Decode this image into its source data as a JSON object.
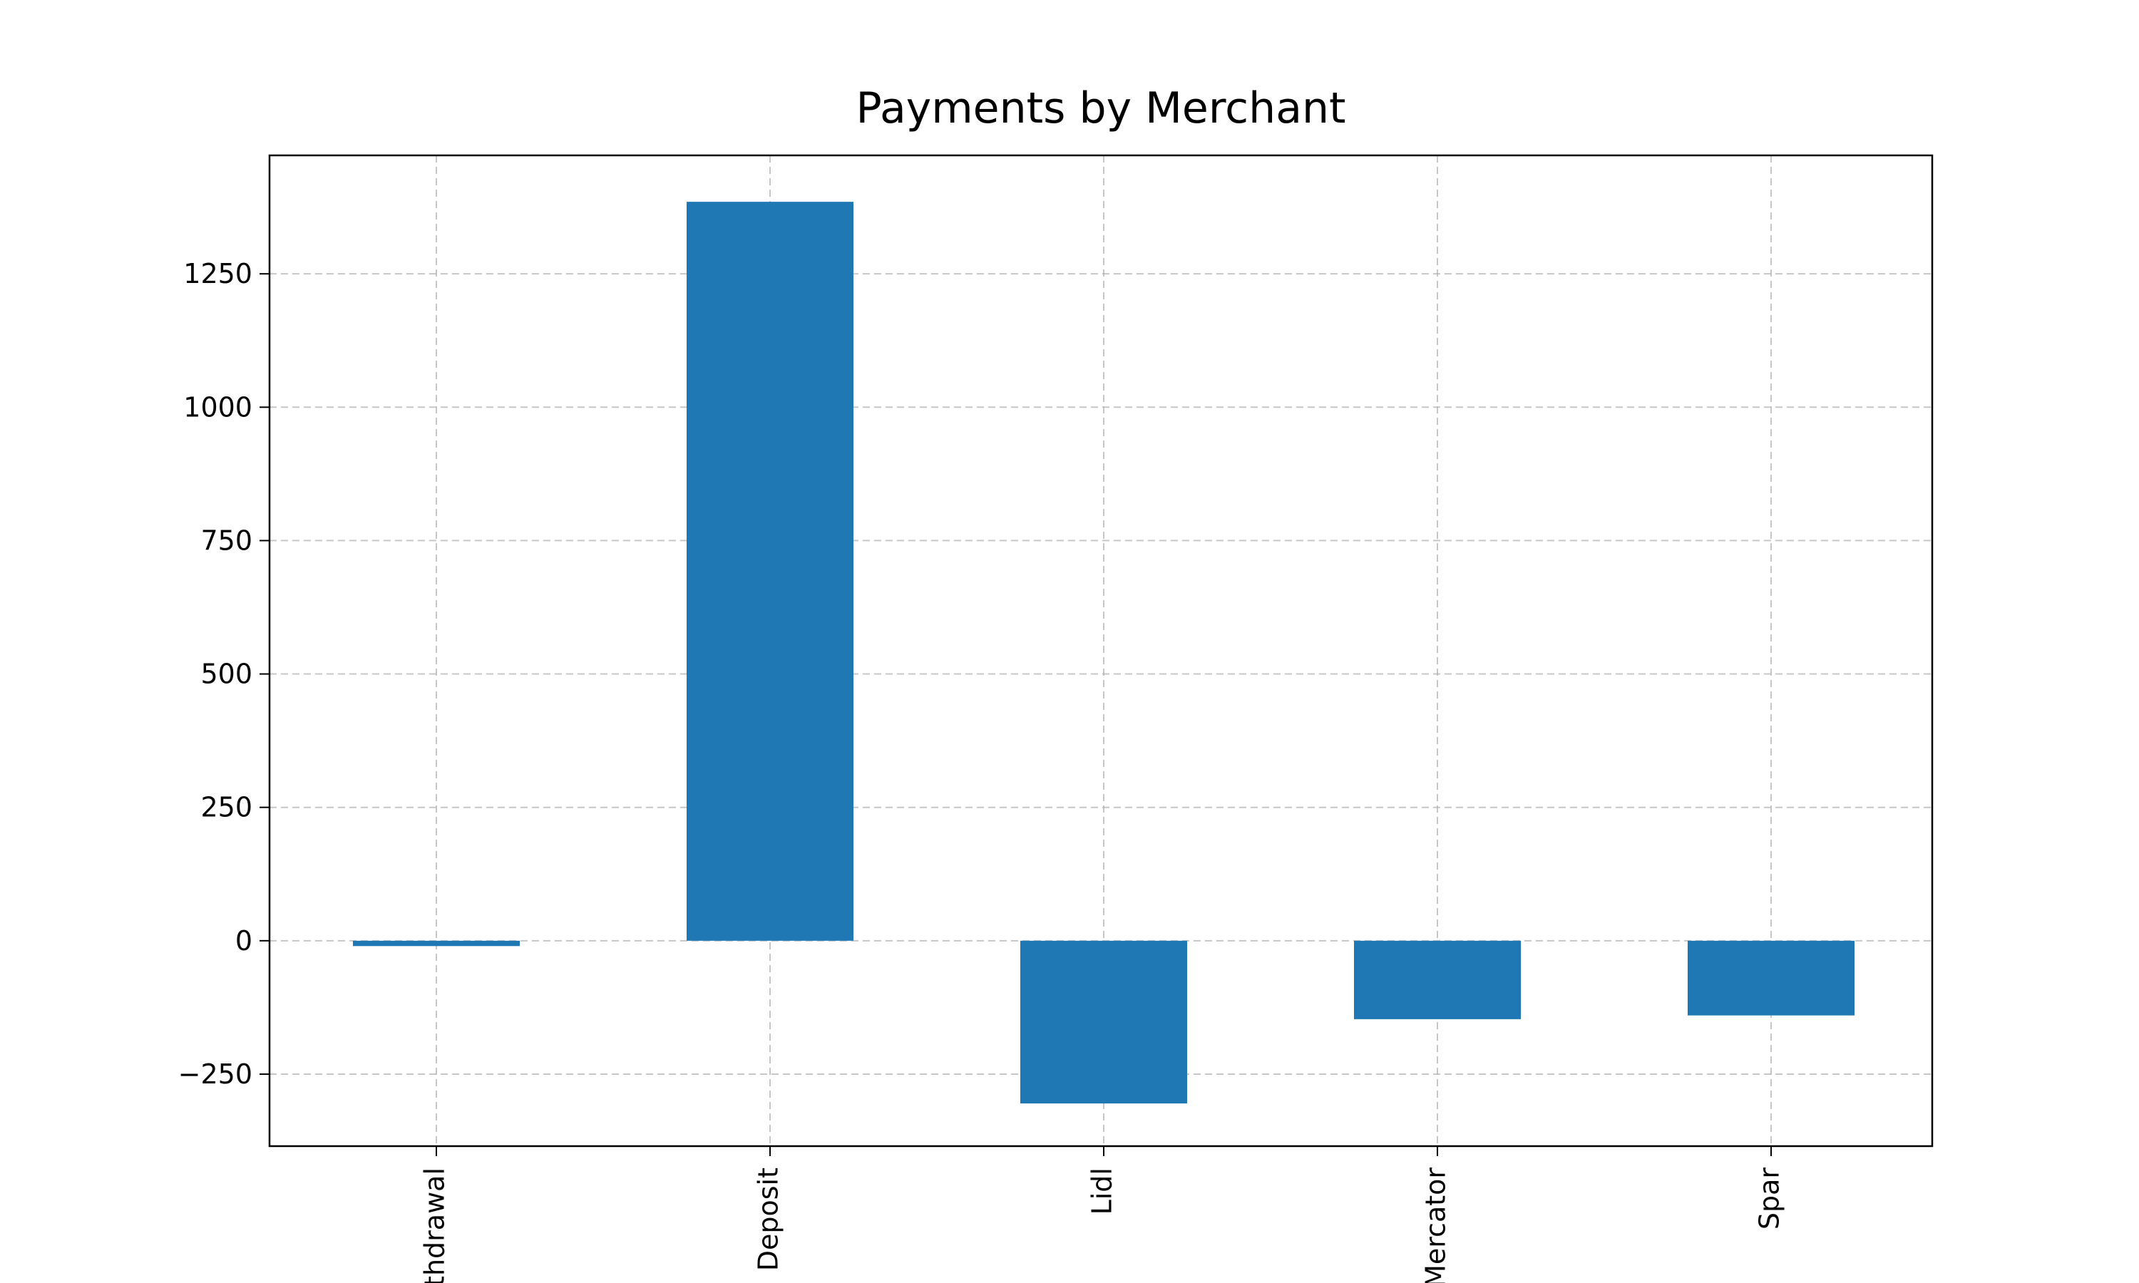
{
  "chart_data": {
    "type": "bar",
    "title": "Payments by Merchant",
    "xlabel": "",
    "ylabel": "",
    "categories": [
      "Withdrawal",
      "Deposit",
      "Lidl",
      "Mercator",
      "Spar"
    ],
    "values": [
      -10,
      1385,
      -305,
      -147,
      -140
    ],
    "ylim": [
      -385,
      1472
    ],
    "yticks": [
      -250,
      0,
      250,
      500,
      750,
      1000,
      1250
    ],
    "ytick_labels": [
      "−250",
      "0",
      "250",
      "500",
      "750",
      "1000",
      "1250"
    ],
    "bar_color": "#1f77b4",
    "grid": true,
    "x_tick_rotation": "vertical"
  }
}
